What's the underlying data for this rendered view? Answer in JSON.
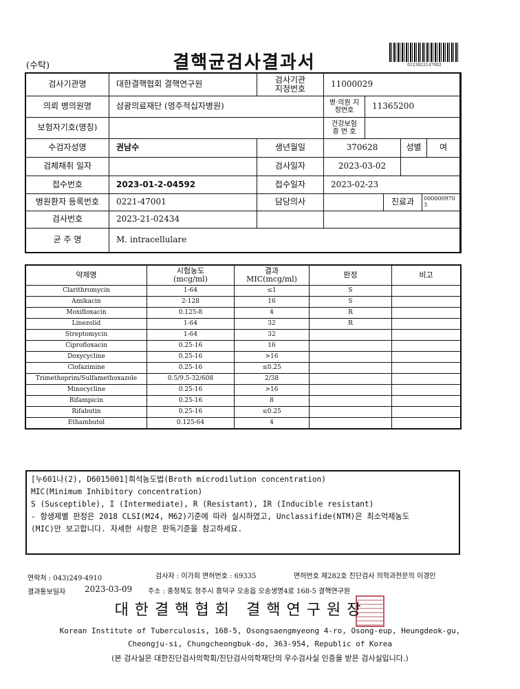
{
  "header": {
    "tag": "(수탁)",
    "title": "결핵균검사결과서",
    "barcode_number": "0123022147002"
  },
  "info": {
    "lab_name_label": "검사기관명",
    "lab_name": "대한결핵협회 결핵연구원",
    "lab_code_label": "검사기관 지정번호",
    "lab_code": "11000029",
    "hospital_label": "의뢰 병의원명",
    "hospital": "삼광의료재단 (영주적십자병원)",
    "hospital_code_label": "병·의원 지정번호",
    "hospital_code": "11365200",
    "insurer_label": "보험자기호(명칭)",
    "insurer": "",
    "insurance_no_label": "건강보험 증 번 호",
    "insurance_no": "",
    "patient_label": "수검자성명",
    "patient": "권남수",
    "birth_label": "생년월일",
    "birth": "370628",
    "sex_label": "성별",
    "sex": "여",
    "collect_label": "검체채취 일자",
    "collect": "",
    "test_date_label": "검사일자",
    "test_date": "2023-03-02",
    "receipt_no_label": "접수번호",
    "receipt_no": "2023-01-2-04592",
    "receipt_date_label": "접수일자",
    "receipt_date": "2023-02-23",
    "reg_no_label": "병원환자 등록번호",
    "reg_no": "0221-47001",
    "doctor_label": "담당의사",
    "doctor": "",
    "dept_label": "진료과",
    "dept": "0000009703",
    "test_no_label": "검사번호",
    "test_no": "2023-21-02434",
    "strain_label": "균 주 명",
    "strain": "M. intracellulare"
  },
  "results": {
    "headers": [
      "약제명",
      "시험농도(mcg/ml)",
      "결과 MIC(mcg/ml)",
      "판정",
      "비고"
    ],
    "rows": [
      [
        "Clarithromycin",
        "1-64",
        "≤1",
        "S",
        ""
      ],
      [
        "Amikacin",
        "2-128",
        "16",
        "S",
        ""
      ],
      [
        "Moxifloxacin",
        "0.125-8",
        "4",
        "R",
        ""
      ],
      [
        "Linezolid",
        "1-64",
        "32",
        "R",
        ""
      ],
      [
        "Streptomycin",
        "1-64",
        "32",
        "",
        ""
      ],
      [
        "Ciprofloxacin",
        "0.25-16",
        "16",
        "",
        ""
      ],
      [
        "Doxycycline",
        "0.25-16",
        ">16",
        "",
        ""
      ],
      [
        "Clofazimine",
        "0.25-16",
        "≤0.25",
        "",
        ""
      ],
      [
        "Trimethoprim/Sulfamethoxazole",
        "0.5/9.5-32/608",
        "2/38",
        "",
        ""
      ],
      [
        "Minocycline",
        "0.25-16",
        ">16",
        "",
        ""
      ],
      [
        "Rifampicin",
        "0.25-16",
        "8",
        "",
        ""
      ],
      [
        "Rifabutin",
        "0.25-16",
        "≤0.25",
        "",
        ""
      ],
      [
        "Ethambutol",
        "0.125-64",
        "4",
        "",
        ""
      ]
    ]
  },
  "notes": [
    "[누601나(2), D6015001]희석농도법(Broth microdilution concentration)",
    "MIC(Minimum Inhibitory concentration)",
    "S (Susceptible), I (Intermediate), R (Resistant), IR (Inducible resistant)",
    "- 항생제별 판정은 2018 CLSI(M24, M62)기준에 따라 실시하였고, Unclassifide(NTM)은 최소억제농도",
    "(MIC)만 보고합니다. 자세한 사항은 판독기준을 참고하세요."
  ],
  "footer": {
    "contact": "연락처 : 043)249-4910",
    "examiner": "검사자 : 이가희  면허번호 : 69335",
    "specialist": "면허번호 제282호 진단검사 의학과전문의 이경인",
    "report_date_label": "결과통보일자",
    "report_date": "2023-03-09",
    "address": "주소 : 충청북도 청주시 흥덕구 오송읍 오송생명4로 168-5 결핵연구원",
    "signature": "대한결핵협회 결핵연구원장",
    "english_address_1": "Korean Institute of Tuberculosis, 168-5, Osongsaengmyeong 4-ro, Osong-eup, Heungdeok-gu,",
    "english_address_2": "Cheongju-si, Chungcheongbuk-do, 363-954, Republic of Korea",
    "certification": "(본 검사실은 대한진단검사의학회/진단검사의학재단의 우수검사실 인증을 받은 검사실입니다.)",
    "stamp_color": "#b04050"
  }
}
